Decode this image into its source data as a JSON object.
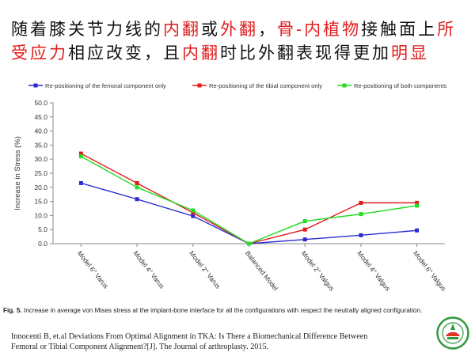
{
  "slide": {
    "title_segments": [
      {
        "text": "随着膝关节力线的",
        "color": "#111111"
      },
      {
        "text": "内翻",
        "color": "#e01c1c"
      },
      {
        "text": "或",
        "color": "#111111"
      },
      {
        "text": "外翻",
        "color": "#e01c1c"
      },
      {
        "text": "，",
        "color": "#111111"
      },
      {
        "text": "骨-内植物",
        "color": "#e01c1c"
      },
      {
        "text": "接触面上",
        "color": "#111111"
      },
      {
        "text": "所受应力",
        "color": "#e01c1c"
      },
      {
        "text": "相应改变，且",
        "color": "#111111"
      },
      {
        "text": "内翻",
        "color": "#e01c1c"
      },
      {
        "text": "时比外翻表现得更加",
        "color": "#111111"
      },
      {
        "text": "明显",
        "color": "#e01c1c"
      }
    ],
    "caption_label": "Fig. 5.",
    "caption_text": " Increase in average von Mises stress at the implant-bone interface for all the configurations with respect the neutrally aligned configuration.",
    "reference_line1": "Innocenti B, et.al Deviations From Optimal Alignment in TKA: Is There a Biomechanical Difference Between",
    "reference_line2": "Femoral or Tibial Component Alignment?[J]. The Journal of arthroplasty. 2015."
  },
  "chart_data": {
    "type": "line",
    "categories": [
      "Model 6° Varus",
      "Model 4° Varus",
      "Model 2° Varus",
      "Balanced Model",
      "Model 2° Valgus",
      "Model 4° Valgus",
      "Model 6° Valgus"
    ],
    "series": [
      {
        "name": "Re-positioning of the femoral component only",
        "color": "#2b2bd1",
        "values": [
          21.5,
          15.8,
          9.8,
          0,
          1.5,
          3.0,
          4.7
        ]
      },
      {
        "name": "Re-positioning of the tibial component only",
        "color": "#e01c1c",
        "values": [
          32.0,
          21.5,
          11.0,
          0,
          5.0,
          14.5,
          14.5
        ]
      },
      {
        "name": "Re-positioning of both components",
        "color": "#22dd22",
        "values": [
          31.0,
          20.0,
          11.8,
          0,
          8.0,
          10.5,
          13.5
        ]
      }
    ],
    "ylabel": "Increase in Stress (%)",
    "xlabel": "",
    "ylim": [
      0,
      50
    ],
    "yticks": [
      0,
      5,
      10,
      15,
      20,
      25,
      30,
      35,
      40,
      45,
      50
    ],
    "ytick_labels": [
      "0.0",
      "5.0",
      "10.0",
      "15.0",
      "20.0",
      "25.0",
      "30.0",
      "35.0",
      "40.0",
      "45.0",
      "50.0"
    ],
    "grid": false,
    "legend_position": "top"
  }
}
